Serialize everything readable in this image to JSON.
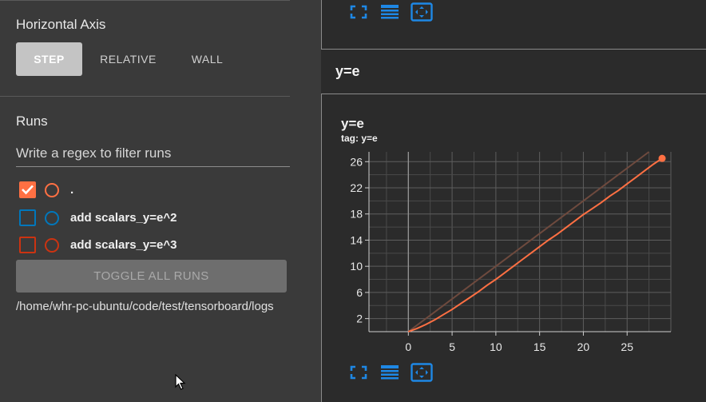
{
  "sidebar": {
    "horizontal_axis": {
      "title": "Horizontal Axis",
      "options": [
        "STEP",
        "RELATIVE",
        "WALL"
      ],
      "selected": "STEP"
    },
    "runs": {
      "title": "Runs",
      "filter_placeholder": "Write a regex to filter runs",
      "items": [
        {
          "label": ".",
          "checked": true,
          "color": "#ff7043"
        },
        {
          "label": "add scalars_y=e^2",
          "checked": false,
          "color": "#0077bb"
        },
        {
          "label": "add scalars_y=e^3",
          "checked": false,
          "color": "#cc3311"
        }
      ],
      "toggle_label": "TOGGLE ALL RUNS",
      "logdir": "/home/whr-pc-ubuntu/code/test/tensorboard/logs"
    }
  },
  "main": {
    "section_header": "y=e",
    "card": {
      "title": "y=e",
      "tag": "tag: y=e"
    },
    "icons": [
      "fullscreen-icon",
      "data-table-icon",
      "fit-domain-icon"
    ],
    "accent_color": "#1e88e5"
  },
  "chart_data": {
    "type": "line",
    "title": "y=e",
    "xlabel": "",
    "ylabel": "",
    "xlim": [
      -4.5,
      30
    ],
    "ylim": [
      0,
      27.5
    ],
    "x_ticks": [
      0,
      5,
      10,
      15,
      20,
      25
    ],
    "y_ticks": [
      2,
      6,
      10,
      14,
      18,
      22,
      26
    ],
    "grid": true,
    "series": [
      {
        "color": "#ff7043",
        "x": [
          0,
          1,
          2,
          3,
          4,
          5,
          6,
          7,
          8,
          9,
          10,
          11,
          12,
          13,
          14,
          15,
          16,
          17,
          18,
          19,
          20,
          21,
          22,
          23,
          24,
          25,
          26,
          27,
          28,
          29
        ],
        "y": [
          0,
          0.5,
          1.1,
          1.8,
          2.6,
          3.4,
          4.3,
          5.2,
          6.1,
          7.1,
          8.0,
          9.0,
          10.0,
          11.0,
          12.0,
          13.0,
          14.0,
          14.9,
          15.9,
          16.9,
          17.9,
          18.8,
          19.7,
          20.7,
          21.6,
          22.6,
          23.6,
          24.6,
          25.6,
          26.5
        ]
      }
    ]
  }
}
